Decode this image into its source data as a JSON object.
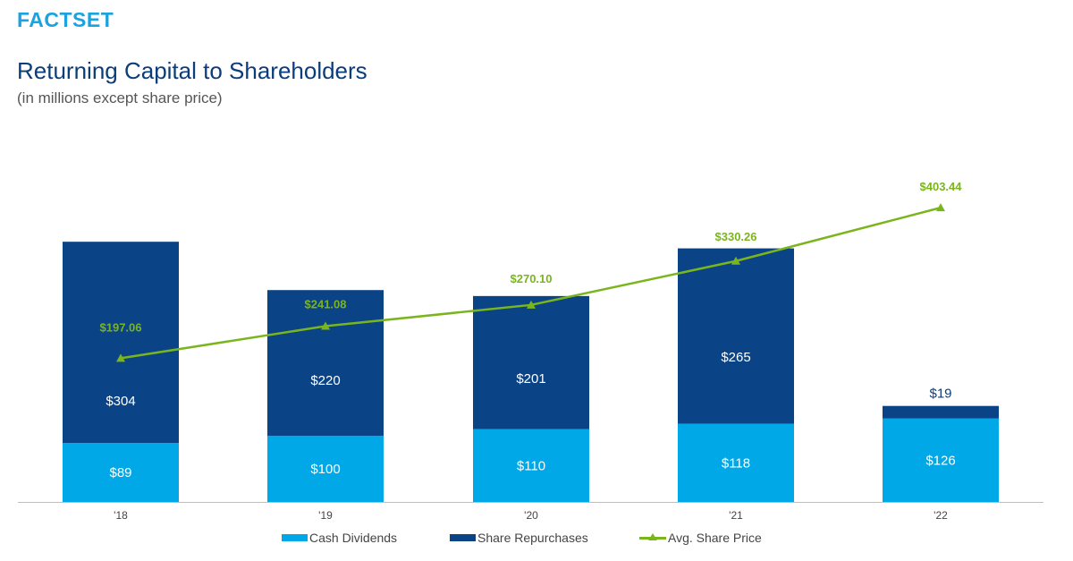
{
  "brand": {
    "logo_text": "FACTSET"
  },
  "header": {
    "title": "Returning Capital to Shareholders",
    "subtitle": "(in millions except share price)"
  },
  "colors": {
    "cash_dividends": "#00a8e8",
    "share_repurchases": "#0b4486",
    "avg_share_price": "#7ab51d",
    "title": "#0b3d7a",
    "logo": "#1aa3e0"
  },
  "chart_data": {
    "type": "bar",
    "stacked": true,
    "categories": [
      "'18",
      "'19",
      "'20",
      "'21",
      "'22"
    ],
    "series": [
      {
        "name": "Cash Dividends",
        "values": [
          89,
          100,
          110,
          118,
          126
        ],
        "labels": [
          "$89",
          "$100",
          "$110",
          "$118",
          "$126"
        ]
      },
      {
        "name": "Share Repurchases",
        "values": [
          304,
          220,
          201,
          265,
          19
        ],
        "labels": [
          "$304",
          "$220",
          "$201",
          "$265",
          "$19"
        ]
      }
    ],
    "line_series": {
      "name": "Avg. Share Price",
      "values": [
        197.06,
        241.08,
        270.1,
        330.26,
        403.44
      ],
      "labels": [
        "$197.06",
        "$241.08",
        "$270.10",
        "$330.26",
        "$403.44"
      ],
      "marker": "triangle"
    },
    "ylim_bars": [
      0,
      400
    ],
    "ylim_line": [
      0,
      535
    ],
    "legend": [
      "Cash Dividends",
      "Share Repurchases",
      "Avg. Share Price"
    ],
    "legend_position": "bottom"
  }
}
